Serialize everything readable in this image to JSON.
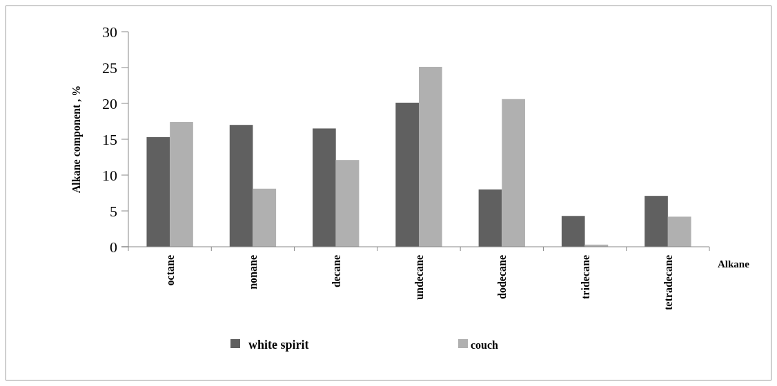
{
  "chart_data": {
    "type": "bar",
    "xlabel": "Alkane",
    "ylabel": "Alkane component  , %",
    "categories": [
      "octane",
      "nonane",
      "decane",
      "undecane",
      "dodecane",
      "tridecane",
      "tetradecane"
    ],
    "series": [
      {
        "name": "white spirit",
        "color": "#606060",
        "values": [
          15.3,
          17,
          16.5,
          20.1,
          8,
          4.3,
          7.1
        ]
      },
      {
        "name": "couch",
        "color": "#b0b0b0",
        "values": [
          17.4,
          8.1,
          12.1,
          25.1,
          20.6,
          0.3,
          4.2
        ]
      }
    ],
    "ylim": [
      0,
      30
    ],
    "yticks": [
      0,
      5,
      10,
      15,
      20,
      25,
      30
    ],
    "grid": false,
    "legend": "bottom"
  }
}
